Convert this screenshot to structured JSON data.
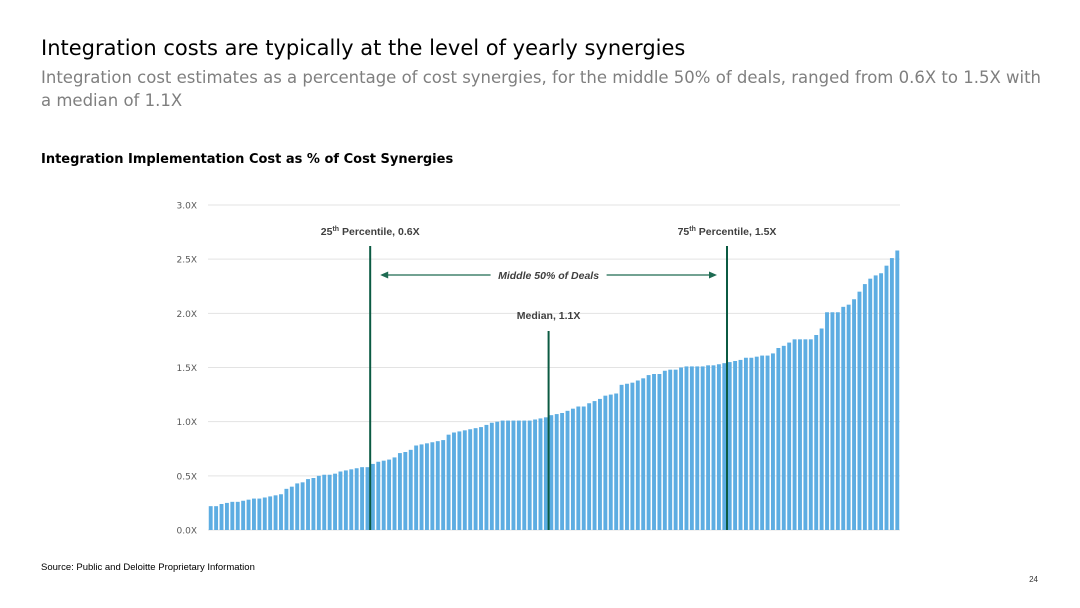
{
  "slide": {
    "title": "Integration costs are typically at the level of yearly synergies",
    "subtitle": "Integration cost estimates as a percentage of cost synergies, for the middle 50% of deals, ranged from 0.6X to 1.5X with a median of 1.1X",
    "source": "Source: Public and Deloitte Proprietary Information",
    "page_number": "24"
  },
  "chart_data": {
    "type": "bar",
    "title": "Integration Implementation Cost as % of Cost Synergies",
    "xlabel": "",
    "ylabel": "",
    "ylim": [
      0,
      3.0
    ],
    "yticks": [
      "0.0X",
      "0.5X",
      "1.0X",
      "1.5X",
      "2.0X",
      "2.5X",
      "3.0X"
    ],
    "grid": true,
    "bar_color": "#5dade2",
    "values": [
      0.22,
      0.22,
      0.24,
      0.25,
      0.26,
      0.26,
      0.27,
      0.28,
      0.29,
      0.29,
      0.3,
      0.31,
      0.32,
      0.33,
      0.38,
      0.4,
      0.43,
      0.44,
      0.47,
      0.48,
      0.5,
      0.51,
      0.51,
      0.52,
      0.54,
      0.55,
      0.56,
      0.57,
      0.58,
      0.58,
      0.61,
      0.63,
      0.64,
      0.65,
      0.67,
      0.71,
      0.72,
      0.74,
      0.78,
      0.79,
      0.8,
      0.81,
      0.82,
      0.83,
      0.88,
      0.9,
      0.91,
      0.92,
      0.93,
      0.94,
      0.95,
      0.97,
      0.99,
      1.0,
      1.01,
      1.01,
      1.01,
      1.01,
      1.01,
      1.01,
      1.02,
      1.03,
      1.04,
      1.06,
      1.07,
      1.08,
      1.1,
      1.12,
      1.14,
      1.14,
      1.17,
      1.19,
      1.21,
      1.24,
      1.25,
      1.26,
      1.34,
      1.35,
      1.36,
      1.38,
      1.4,
      1.43,
      1.44,
      1.44,
      1.47,
      1.48,
      1.48,
      1.5,
      1.51,
      1.51,
      1.51,
      1.51,
      1.52,
      1.52,
      1.53,
      1.54,
      1.55,
      1.56,
      1.57,
      1.59,
      1.59,
      1.6,
      1.61,
      1.61,
      1.63,
      1.68,
      1.7,
      1.73,
      1.76,
      1.76,
      1.76,
      1.76,
      1.8,
      1.86,
      2.01,
      2.01,
      2.01,
      2.06,
      2.08,
      2.13,
      2.2,
      2.27,
      2.32,
      2.35,
      2.37,
      2.44,
      2.51,
      2.58
    ],
    "annotations": {
      "p25": {
        "label": "25",
        "sup": "th",
        "suffix": " Percentile, 0.6X",
        "value_index": 29,
        "color": "#0b5a42"
      },
      "p75": {
        "label": "75",
        "sup": "th",
        "suffix": " Percentile, 1.5X",
        "value_index": 95,
        "color": "#0b5a42"
      },
      "median": {
        "label": "Median, 1.1X",
        "value_index": 62,
        "color": "#0b5a42"
      },
      "range_label": "Middle 50% of Deals",
      "range_color": "#1e6b52"
    }
  }
}
